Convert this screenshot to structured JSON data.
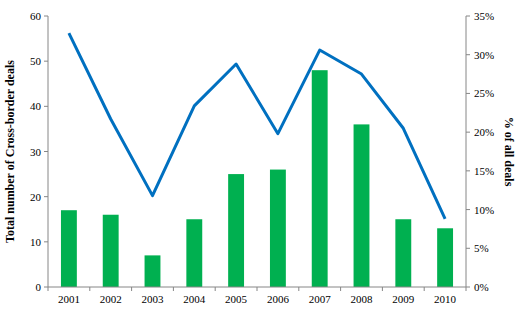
{
  "chart_data": {
    "type": "bar",
    "y_label": "Total number of Cross-border deals",
    "y2_label": "% of all deals",
    "categories": [
      "2001",
      "2002",
      "2003",
      "2004",
      "2005",
      "2006",
      "2007",
      "2008",
      "2009",
      "2010"
    ],
    "series": [
      {
        "type": "bar",
        "color": "#00b050",
        "values": [
          17,
          16,
          7,
          15,
          25,
          26,
          48,
          36,
          15,
          13
        ]
      },
      {
        "type": "line",
        "axis": "y2",
        "color": "#0070c0",
        "values": [
          32.8,
          21.7,
          11.8,
          23.4,
          28.8,
          19.8,
          30.6,
          27.5,
          20.5,
          8.8
        ]
      }
    ],
    "ylim": [
      0,
      60
    ],
    "yticks": [
      0,
      10,
      20,
      30,
      40,
      50,
      60
    ],
    "y2lim": [
      0,
      35
    ],
    "y2ticks": [
      {
        "value": 0,
        "label": "0%"
      },
      {
        "value": 5,
        "label": "5%"
      },
      {
        "value": 10,
        "label": "10%"
      },
      {
        "value": 15,
        "label": "15%"
      },
      {
        "value": 20,
        "label": "20%"
      },
      {
        "value": 25,
        "label": "25%"
      },
      {
        "value": 30,
        "label": "30%"
      },
      {
        "value": 35,
        "label": "35%"
      }
    ],
    "grid": false
  }
}
